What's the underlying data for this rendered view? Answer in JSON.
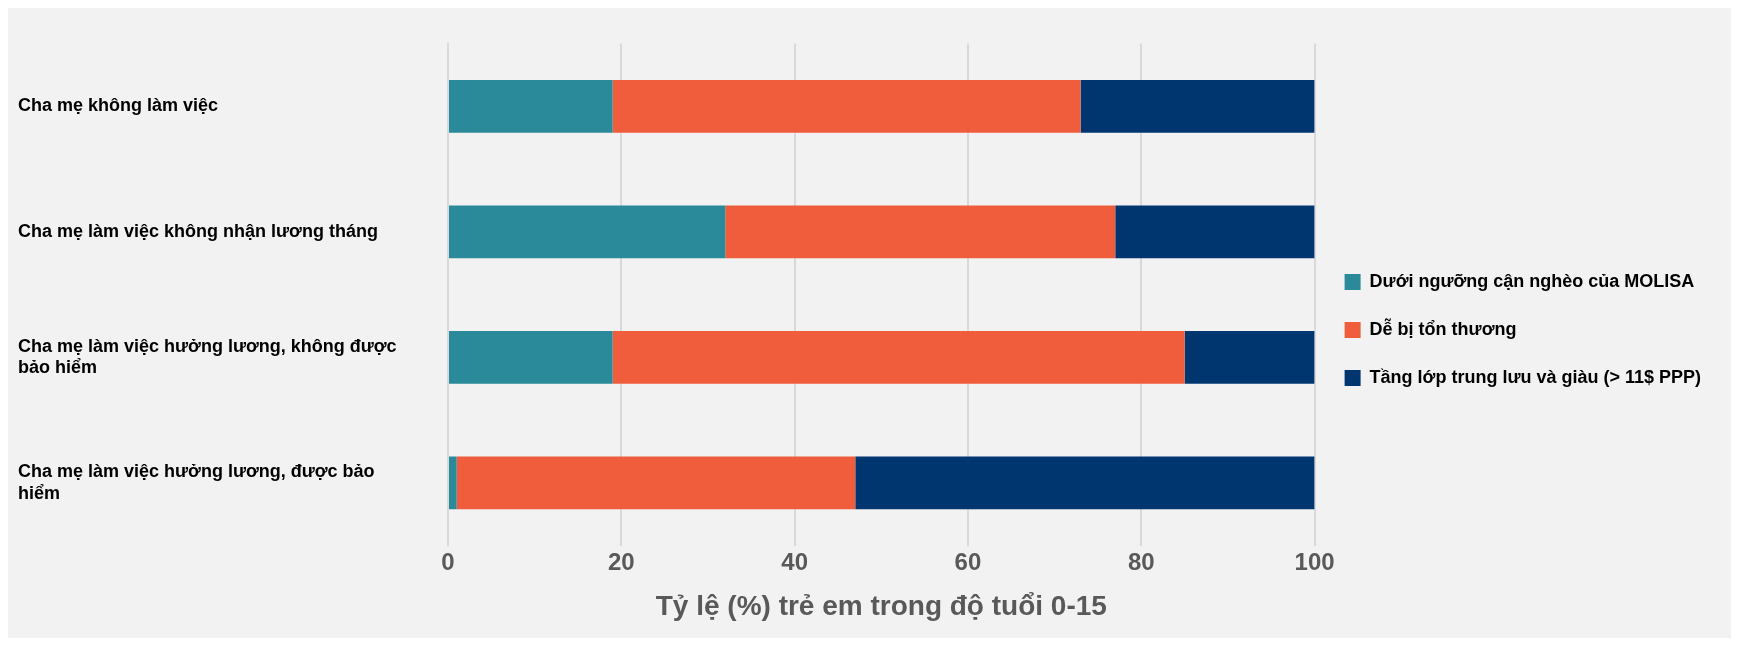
{
  "chart_data": {
    "type": "bar",
    "orientation": "horizontal",
    "stacked": true,
    "categories": [
      "Cha mẹ không làm việc",
      "Cha mẹ làm việc không nhận lương tháng",
      "Cha mẹ làm việc hưởng lương, không được bảo hiểm",
      "Cha mẹ làm việc hưởng lương, được bảo hiểm"
    ],
    "series": [
      {
        "name": "Dưới ngưỡng cận nghèo của MOLISA",
        "color": "#2a8a9a",
        "values": [
          19,
          32,
          19,
          1
        ]
      },
      {
        "name": "Dễ bị tổn thương",
        "color": "#f05d3c",
        "values": [
          54,
          45,
          66,
          46
        ]
      },
      {
        "name": "Tầng lớp trung lưu và giàu (> 11$ PPP)",
        "color": "#003670",
        "values": [
          27,
          23,
          15,
          53
        ]
      }
    ],
    "xlabel": "Tỷ lệ (%) trẻ em trong độ tuổi 0-15",
    "xlim": [
      0,
      100
    ],
    "xticks": [
      0,
      20,
      40,
      60,
      80,
      100
    ],
    "grid": "x",
    "legend": "right"
  }
}
